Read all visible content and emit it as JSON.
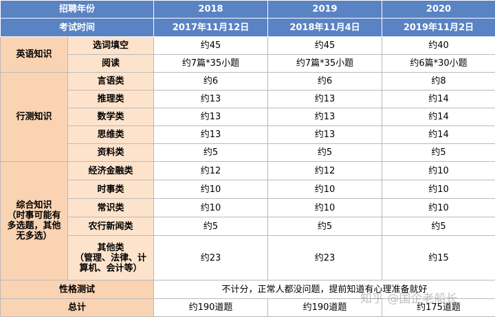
{
  "header": {
    "row1": {
      "label": "招聘年份",
      "years": [
        "2018",
        "2019",
        "2020"
      ]
    },
    "row2": {
      "label": "考试时间",
      "dates": [
        "2017年11月12日",
        "2018年11月4日",
        "2019年11月2日"
      ]
    }
  },
  "sections": [
    {
      "category": "英语知识",
      "rows": [
        {
          "item": "选词填空",
          "values": [
            "约45",
            "约45",
            "约40"
          ]
        },
        {
          "item": "阅读",
          "values": [
            "约7篇*35小题",
            "约7篇*35小题",
            "约6篇*30小题"
          ]
        }
      ]
    },
    {
      "category": "行测知识",
      "rows": [
        {
          "item": "言语类",
          "values": [
            "约6",
            "约6",
            "约8"
          ]
        },
        {
          "item": "推理类",
          "values": [
            "约13",
            "约13",
            "约14"
          ]
        },
        {
          "item": "数学类",
          "values": [
            "约13",
            "约13",
            "约14"
          ]
        },
        {
          "item": "思维类",
          "values": [
            "约13",
            "约13",
            "约14"
          ]
        },
        {
          "item": "资料类",
          "values": [
            "约5",
            "约5",
            "约5"
          ]
        }
      ]
    },
    {
      "category_lines": [
        "综合知识",
        "（时事可能有",
        "多选题，其他",
        "无多选）"
      ],
      "rows": [
        {
          "item": "经济金融类",
          "values": [
            "约12",
            "约12",
            "约10"
          ]
        },
        {
          "item": "时事类",
          "values": [
            "约10",
            "约10",
            "约10"
          ]
        },
        {
          "item": "常识类",
          "values": [
            "约10",
            "约10",
            "约10"
          ]
        },
        {
          "item": "农行新闻类",
          "values": [
            "约5",
            "约5",
            "约5"
          ]
        },
        {
          "item_lines": [
            "其他类",
            "（管理、法律、计",
            "算机、会计等）"
          ],
          "values": [
            "约23",
            "约23",
            "约15"
          ]
        }
      ]
    }
  ],
  "personality": {
    "label": "性格测试",
    "text": "不计分，正常人都没问题，提前知道有心理准备就好"
  },
  "total": {
    "label": "总计",
    "values": [
      "约190道题",
      "约190道题",
      "约175道题"
    ]
  },
  "watermark": "知乎 @国企老船长"
}
